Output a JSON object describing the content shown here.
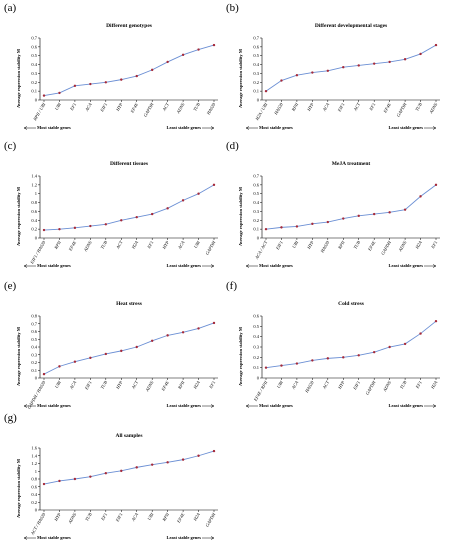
{
  "chart_data": [
    {
      "panel": "(a)",
      "type": "line",
      "title": "Different genotypes",
      "ylabel": "Average expression stability M",
      "categories": [
        "RPII / UBI",
        "UBI",
        "EF1",
        "ACA",
        "EIF1",
        "HYP",
        "EF4E",
        "GAPDH",
        "ACT",
        "ADNS",
        "TUB",
        "HAS20"
      ],
      "values": [
        0.05,
        0.08,
        0.16,
        0.18,
        0.2,
        0.23,
        0.27,
        0.34,
        0.43,
        0.51,
        0.57,
        0.62
      ],
      "yticks": [
        "0",
        "0.1",
        "0.2",
        "0.3",
        "0.4",
        "0.5",
        "0.6",
        "0.7"
      ],
      "ylim": [
        0,
        0.7
      ],
      "most_stable": "Most stable genes",
      "least_stable": "Least stable genes"
    },
    {
      "panel": "(b)",
      "type": "line",
      "title": "Different developmental stages",
      "ylabel": "Average expression stability M",
      "categories": [
        "H2A / UBI",
        "HAS20",
        "RPII",
        "HYP",
        "ACA",
        "EIF1",
        "ACT",
        "EF1",
        "EF4E",
        "GAPDH",
        "TUB",
        "ADNS"
      ],
      "values": [
        0.1,
        0.22,
        0.28,
        0.31,
        0.33,
        0.37,
        0.39,
        0.41,
        0.43,
        0.46,
        0.52,
        0.62
      ],
      "yticks": [
        "0",
        "0.1",
        "0.2",
        "0.3",
        "0.4",
        "0.5",
        "0.6",
        "0.7"
      ],
      "ylim": [
        0,
        0.7
      ],
      "most_stable": "Most stable genes",
      "least_stable": "Least stable genes"
    },
    {
      "panel": "(c)",
      "type": "line",
      "title": "Different tissues",
      "ylabel": "Average expression stability M",
      "categories": [
        "EIF1 / HAS20",
        "RPII",
        "EF4E",
        "ADNS",
        "TUB",
        "ACT",
        "H2A",
        "EF1",
        "HYP",
        "ACA",
        "UBI",
        "GAPDH"
      ],
      "values": [
        0.18,
        0.2,
        0.23,
        0.27,
        0.31,
        0.4,
        0.47,
        0.54,
        0.67,
        0.85,
        1.0,
        1.2
      ],
      "yticks": [
        "0",
        "0.2",
        "0.4",
        "0.6",
        "0.8",
        "1",
        "1.2",
        "1.4"
      ],
      "ylim": [
        0,
        1.4
      ],
      "most_stable": "Most stable genes",
      "least_stable": "Least stable genes"
    },
    {
      "panel": "(d)",
      "type": "line",
      "title": "MeJA treatment",
      "ylabel": "Average expression stability M",
      "categories": [
        "ACA / ACT",
        "EIF1",
        "UBI",
        "HYP",
        "HAS20",
        "RPII",
        "TUB",
        "EF4E",
        "GAPDH",
        "ADNS",
        "H2A",
        "EF1"
      ],
      "values": [
        0.1,
        0.12,
        0.13,
        0.16,
        0.18,
        0.22,
        0.25,
        0.27,
        0.29,
        0.32,
        0.47,
        0.6
      ],
      "yticks": [
        "0",
        "0.1",
        "0.2",
        "0.3",
        "0.4",
        "0.5",
        "0.6",
        "0.7"
      ],
      "ylim": [
        0,
        0.7
      ],
      "most_stable": "Most stable genes",
      "least_stable": "Least stable genes"
    },
    {
      "panel": "(e)",
      "type": "line",
      "title": "Heat stress",
      "ylabel": "Average expression stability M",
      "categories": [
        "GAPDH / HAS20",
        "UBI",
        "ACA",
        "EIF1",
        "TUB",
        "HYP",
        "ACT",
        "ADNS",
        "EF4E",
        "RPII",
        "H2A",
        "EF1"
      ],
      "values": [
        0.05,
        0.15,
        0.21,
        0.26,
        0.31,
        0.35,
        0.4,
        0.48,
        0.55,
        0.59,
        0.64,
        0.71
      ],
      "yticks": [
        "0",
        "0.1",
        "0.2",
        "0.3",
        "0.4",
        "0.5",
        "0.6",
        "0.7",
        "0.8"
      ],
      "ylim": [
        0,
        0.8
      ],
      "most_stable": "Most stable genes",
      "least_stable": "Least stable genes"
    },
    {
      "panel": "(f)",
      "type": "line",
      "title": "Cold stress",
      "ylabel": "Average expression stability M",
      "categories": [
        "EF4E / RPII",
        "UBI",
        "ACA",
        "HAS20",
        "ACT",
        "HYP",
        "EIF1",
        "GAPDH",
        "ADNS",
        "TUB",
        "EF1",
        "H2A"
      ],
      "values": [
        0.1,
        0.12,
        0.14,
        0.17,
        0.19,
        0.2,
        0.22,
        0.25,
        0.3,
        0.33,
        0.43,
        0.55
      ],
      "yticks": [
        "0",
        "0.1",
        "0.2",
        "0.3",
        "0.4",
        "0.5",
        "0.6"
      ],
      "ylim": [
        0,
        0.6
      ],
      "most_stable": "Most stable genes",
      "least_stable": "Least stable genes"
    },
    {
      "panel": "(g)",
      "type": "line",
      "title": "All samples",
      "ylabel": "Average expression stability M",
      "categories": [
        "ACT / HAS20",
        "HYP",
        "ADNS",
        "TUB",
        "EF1",
        "EIF1",
        "ACA",
        "UBI",
        "RPII",
        "EF4E",
        "H2A",
        "GAPDH"
      ],
      "values": [
        0.67,
        0.75,
        0.8,
        0.86,
        0.95,
        1.01,
        1.1,
        1.17,
        1.23,
        1.3,
        1.4,
        1.52
      ],
      "yticks": [
        "0",
        "0.2",
        "0.4",
        "0.6",
        "0.8",
        "1",
        "1.2",
        "1.4",
        "1.6"
      ],
      "ylim": [
        0,
        1.6
      ],
      "most_stable": "Most stable genes",
      "least_stable": "Least stable genes"
    }
  ],
  "style": {
    "line_color": "#6b8fd4",
    "marker_color": "#a52a3a",
    "axis_color": "#000000"
  }
}
